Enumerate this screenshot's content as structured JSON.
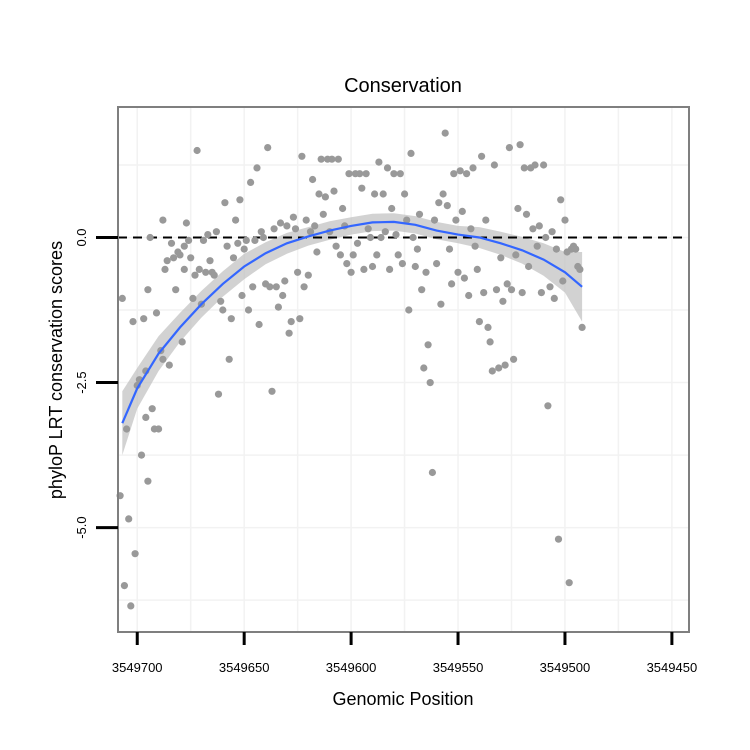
{
  "chart_data": {
    "type": "scatter",
    "title": "Conservation",
    "xlabel": "Genomic Position",
    "ylabel": "phyloP LRT conservation scores",
    "x_reversed": true,
    "xlim": [
      3549709,
      3549442
    ],
    "ylim": [
      -6.8,
      2.25
    ],
    "x_ticks": [
      3549700,
      3549650,
      3549600,
      3549550,
      3549500,
      3549450
    ],
    "x_tick_labels": [
      "3549700",
      "3549650",
      "3549600",
      "3549550",
      "3549500",
      "3549450"
    ],
    "y_ticks": [
      0,
      -2.5,
      -5
    ],
    "y_tick_labels": [
      "0.0",
      "-2.5",
      "-5.0"
    ],
    "grid": true,
    "reference_line": {
      "y": 0,
      "style": "dashed"
    },
    "colors": {
      "points": "#999999",
      "smooth": "#3366ff",
      "ribbon": "#bfbfbf",
      "panel_border": "#7f7f7f",
      "grid": "#f2f2f2"
    },
    "points": [
      [
        3549708,
        -4.45
      ],
      [
        3549707,
        -1.05
      ],
      [
        3549706,
        -6.0
      ],
      [
        3549705,
        -3.3
      ],
      [
        3549704,
        -4.85
      ],
      [
        3549703,
        -6.35
      ],
      [
        3549702,
        -1.45
      ],
      [
        3549701,
        -5.45
      ],
      [
        3549700,
        -2.55
      ],
      [
        3549699,
        -2.45
      ],
      [
        3549698,
        -3.75
      ],
      [
        3549697,
        -1.4
      ],
      [
        3549696,
        -2.3
      ],
      [
        3549696,
        -3.1
      ],
      [
        3549695,
        -4.2
      ],
      [
        3549695,
        -0.9
      ],
      [
        3549694,
        0.0
      ],
      [
        3549693,
        -2.95
      ],
      [
        3549692,
        -3.3
      ],
      [
        3549691,
        -1.3
      ],
      [
        3549690,
        -3.3
      ],
      [
        3549689,
        -1.95
      ],
      [
        3549688,
        -2.1
      ],
      [
        3549688,
        0.3
      ],
      [
        3549687,
        -0.55
      ],
      [
        3549686,
        -0.4
      ],
      [
        3549685,
        -2.2
      ],
      [
        3549684,
        -0.1
      ],
      [
        3549683,
        -0.35
      ],
      [
        3549682,
        -0.9
      ],
      [
        3549681,
        -0.25
      ],
      [
        3549680,
        -0.3
      ],
      [
        3549679,
        -1.8
      ],
      [
        3549678,
        -0.15
      ],
      [
        3549678,
        -0.55
      ],
      [
        3549677,
        0.25
      ],
      [
        3549676,
        -0.05
      ],
      [
        3549675,
        -0.35
      ],
      [
        3549674,
        -1.05
      ],
      [
        3549673,
        -0.65
      ],
      [
        3549672,
        1.5
      ],
      [
        3549671,
        -0.55
      ],
      [
        3549670,
        -1.15
      ],
      [
        3549669,
        -0.05
      ],
      [
        3549668,
        -0.6
      ],
      [
        3549667,
        0.05
      ],
      [
        3549666,
        -0.4
      ],
      [
        3549665,
        -0.6
      ],
      [
        3549664,
        -0.65
      ],
      [
        3549663,
        0.1
      ],
      [
        3549662,
        -2.7
      ],
      [
        3549661,
        -1.1
      ],
      [
        3549660,
        -1.25
      ],
      [
        3549659,
        0.6
      ],
      [
        3549658,
        -0.15
      ],
      [
        3549657,
        -2.1
      ],
      [
        3549656,
        -1.4
      ],
      [
        3549655,
        -0.35
      ],
      [
        3549654,
        0.3
      ],
      [
        3549653,
        -0.1
      ],
      [
        3549652,
        0.65
      ],
      [
        3549651,
        -1.0
      ],
      [
        3549650,
        -0.2
      ],
      [
        3549649,
        -0.05
      ],
      [
        3549648,
        -1.25
      ],
      [
        3549647,
        0.95
      ],
      [
        3549646,
        -0.85
      ],
      [
        3549645,
        -0.05
      ],
      [
        3549644,
        1.2
      ],
      [
        3549643,
        -1.5
      ],
      [
        3549642,
        0.1
      ],
      [
        3549641,
        0.0
      ],
      [
        3549640,
        -0.8
      ],
      [
        3549639,
        1.55
      ],
      [
        3549638,
        -0.85
      ],
      [
        3549637,
        -2.65
      ],
      [
        3549636,
        0.15
      ],
      [
        3549635,
        -0.85
      ],
      [
        3549634,
        -1.2
      ],
      [
        3549633,
        0.25
      ],
      [
        3549632,
        -1.0
      ],
      [
        3549631,
        -0.75
      ],
      [
        3549630,
        0.2
      ],
      [
        3549629,
        -1.65
      ],
      [
        3549628,
        -1.45
      ],
      [
        3549627,
        0.35
      ],
      [
        3549626,
        0.15
      ],
      [
        3549625,
        -0.6
      ],
      [
        3549624,
        -1.4
      ],
      [
        3549623,
        1.4
      ],
      [
        3549622,
        -0.85
      ],
      [
        3549621,
        0.3
      ],
      [
        3549620,
        -0.65
      ],
      [
        3549619,
        0.1
      ],
      [
        3549618,
        1.0
      ],
      [
        3549617,
        0.2
      ],
      [
        3549616,
        -0.25
      ],
      [
        3549615,
        0.75
      ],
      [
        3549614,
        1.35
      ],
      [
        3549613,
        0.4
      ],
      [
        3549612,
        0.7
      ],
      [
        3549611,
        1.35
      ],
      [
        3549610,
        0.1
      ],
      [
        3549609,
        1.35
      ],
      [
        3549608,
        0.8
      ],
      [
        3549607,
        -0.15
      ],
      [
        3549606,
        1.35
      ],
      [
        3549605,
        -0.3
      ],
      [
        3549604,
        0.5
      ],
      [
        3549603,
        0.2
      ],
      [
        3549602,
        -0.45
      ],
      [
        3549601,
        1.1
      ],
      [
        3549600,
        -0.6
      ],
      [
        3549599,
        -0.3
      ],
      [
        3549598,
        1.1
      ],
      [
        3549597,
        -0.1
      ],
      [
        3549596,
        1.1
      ],
      [
        3549595,
        0.85
      ],
      [
        3549594,
        -0.55
      ],
      [
        3549593,
        1.1
      ],
      [
        3549592,
        0.15
      ],
      [
        3549591,
        0.0
      ],
      [
        3549590,
        -0.5
      ],
      [
        3549589,
        0.75
      ],
      [
        3549588,
        -0.3
      ],
      [
        3549587,
        1.3
      ],
      [
        3549586,
        0.0
      ],
      [
        3549585,
        0.75
      ],
      [
        3549584,
        0.1
      ],
      [
        3549583,
        1.2
      ],
      [
        3549582,
        -0.55
      ],
      [
        3549581,
        0.5
      ],
      [
        3549580,
        1.1
      ],
      [
        3549579,
        0.05
      ],
      [
        3549578,
        -0.3
      ],
      [
        3549577,
        1.1
      ],
      [
        3549576,
        -0.45
      ],
      [
        3549575,
        0.75
      ],
      [
        3549574,
        0.3
      ],
      [
        3549573,
        -1.25
      ],
      [
        3549572,
        1.45
      ],
      [
        3549571,
        0.0
      ],
      [
        3549570,
        -0.5
      ],
      [
        3549569,
        -0.2
      ],
      [
        3549568,
        0.4
      ],
      [
        3549567,
        -0.9
      ],
      [
        3549566,
        -2.25
      ],
      [
        3549565,
        -0.6
      ],
      [
        3549564,
        -1.85
      ],
      [
        3549563,
        -2.5
      ],
      [
        3549562,
        -4.05
      ],
      [
        3549561,
        0.3
      ],
      [
        3549560,
        -0.45
      ],
      [
        3549559,
        0.6
      ],
      [
        3549558,
        -1.15
      ],
      [
        3549557,
        0.75
      ],
      [
        3549556,
        1.8
      ],
      [
        3549555,
        0.55
      ],
      [
        3549554,
        -0.2
      ],
      [
        3549553,
        -0.8
      ],
      [
        3549552,
        1.1
      ],
      [
        3549551,
        0.3
      ],
      [
        3549550,
        -0.6
      ],
      [
        3549549,
        1.15
      ],
      [
        3549548,
        0.45
      ],
      [
        3549547,
        -0.7
      ],
      [
        3549546,
        1.1
      ],
      [
        3549545,
        -1.0
      ],
      [
        3549544,
        0.15
      ],
      [
        3549543,
        1.2
      ],
      [
        3549542,
        -0.15
      ],
      [
        3549541,
        -0.55
      ],
      [
        3549540,
        -1.45
      ],
      [
        3549539,
        1.4
      ],
      [
        3549538,
        -0.95
      ],
      [
        3549537,
        0.3
      ],
      [
        3549536,
        -1.55
      ],
      [
        3549535,
        -1.8
      ],
      [
        3549534,
        -2.3
      ],
      [
        3549533,
        1.25
      ],
      [
        3549532,
        -0.9
      ],
      [
        3549531,
        -2.25
      ],
      [
        3549530,
        -0.35
      ],
      [
        3549529,
        -1.1
      ],
      [
        3549528,
        -2.2
      ],
      [
        3549527,
        -0.8
      ],
      [
        3549526,
        1.55
      ],
      [
        3549525,
        -0.9
      ],
      [
        3549524,
        -2.1
      ],
      [
        3549523,
        -0.3
      ],
      [
        3549522,
        0.5
      ],
      [
        3549521,
        1.6
      ],
      [
        3549520,
        -0.95
      ],
      [
        3549519,
        1.2
      ],
      [
        3549518,
        0.4
      ],
      [
        3549517,
        -0.5
      ],
      [
        3549516,
        1.2
      ],
      [
        3549515,
        0.15
      ],
      [
        3549514,
        1.25
      ],
      [
        3549513,
        -0.15
      ],
      [
        3549512,
        0.2
      ],
      [
        3549511,
        -0.95
      ],
      [
        3549510,
        1.25
      ],
      [
        3549509,
        0.0
      ],
      [
        3549508,
        -2.9
      ],
      [
        3549507,
        -0.85
      ],
      [
        3549506,
        0.1
      ],
      [
        3549505,
        -1.05
      ],
      [
        3549504,
        -0.2
      ],
      [
        3549503,
        -5.2
      ],
      [
        3549502,
        0.65
      ],
      [
        3549501,
        -0.75
      ],
      [
        3549500,
        0.3
      ],
      [
        3549499,
        -0.25
      ],
      [
        3549498,
        -5.95
      ],
      [
        3549497,
        -0.2
      ],
      [
        3549496,
        -0.15
      ],
      [
        3549495,
        -0.2
      ],
      [
        3549494,
        -0.5
      ],
      [
        3549493,
        -0.55
      ],
      [
        3549492,
        -1.55
      ]
    ],
    "smooth_line": {
      "x": [
        3549707,
        3549700,
        3549690,
        3549680,
        3549670,
        3549660,
        3549650,
        3549640,
        3549630,
        3549620,
        3549610,
        3549600,
        3549590,
        3549580,
        3549570,
        3549560,
        3549550,
        3549540,
        3549530,
        3549520,
        3549510,
        3549500,
        3549492
      ],
      "y": [
        -3.2,
        -2.6,
        -2.0,
        -1.55,
        -1.15,
        -0.8,
        -0.5,
        -0.27,
        -0.1,
        0.02,
        0.12,
        0.2,
        0.26,
        0.27,
        0.22,
        0.12,
        0.05,
        0.0,
        -0.1,
        -0.22,
        -0.38,
        -0.6,
        -0.85
      ]
    },
    "confidence_band": {
      "x": [
        3549707,
        3549700,
        3549690,
        3549680,
        3549670,
        3549660,
        3549650,
        3549640,
        3549630,
        3549620,
        3549610,
        3549600,
        3549590,
        3549580,
        3549570,
        3549560,
        3549550,
        3549540,
        3549530,
        3549520,
        3549510,
        3549500,
        3549492
      ],
      "lower": [
        -3.75,
        -2.95,
        -2.3,
        -1.8,
        -1.38,
        -1.02,
        -0.72,
        -0.46,
        -0.28,
        -0.14,
        -0.04,
        0.05,
        0.11,
        0.12,
        0.07,
        -0.03,
        -0.1,
        -0.18,
        -0.3,
        -0.45,
        -0.66,
        -0.95,
        -1.45
      ],
      "upper": [
        -2.65,
        -2.25,
        -1.7,
        -1.3,
        -0.92,
        -0.58,
        -0.28,
        -0.08,
        0.08,
        0.18,
        0.28,
        0.35,
        0.41,
        0.42,
        0.37,
        0.27,
        0.2,
        0.18,
        0.1,
        0.01,
        -0.1,
        -0.25,
        -0.25
      ]
    }
  }
}
